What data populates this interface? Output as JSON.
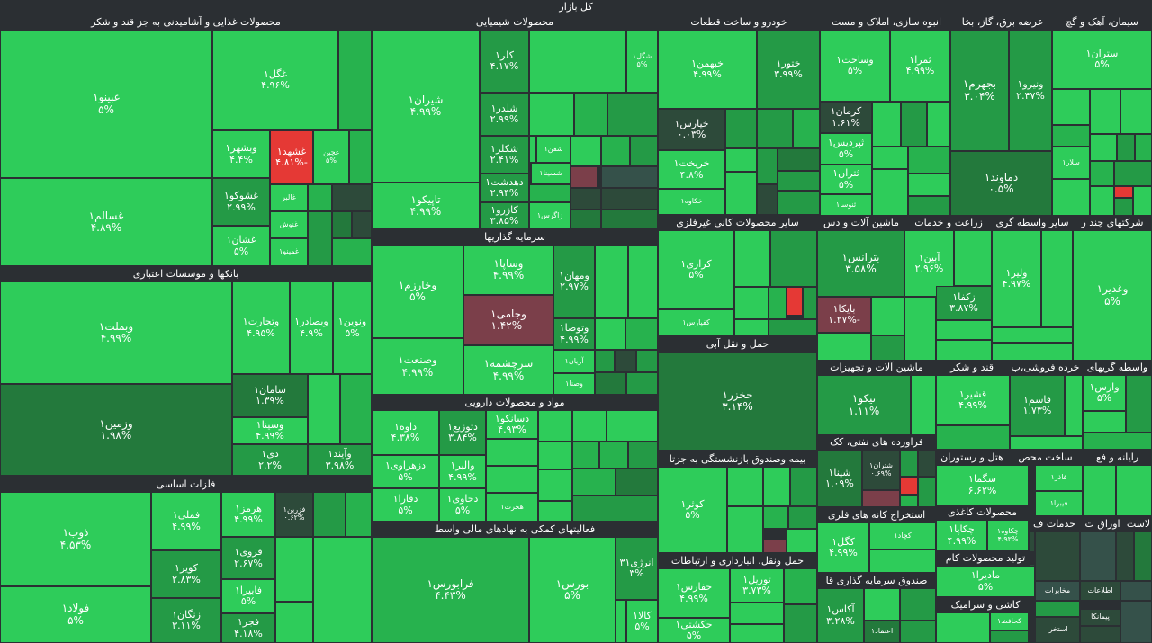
{
  "market_title": "کل بازار",
  "sectors": {
    "food": "محصولات غذایی و آشامیدنی به جز قند و شکر",
    "chemical": "محصولات شیمیایی",
    "auto": "خودرو و ساخت قطعات",
    "construction": "انبوه سازی، املاک و مست",
    "power": "عرضه برق، گاز، بخا",
    "cement": "سیمان، آهک و گچ",
    "banks": "بانکها و موسسات اعتباری",
    "investment": "سرمایه گذاریها",
    "nonmetal": "سایر محصولات کانی غیرفلزی",
    "machinery": "ماشین آلات و دس",
    "agri": "زراعت و خدمات",
    "multi": "شرکتهای چند ر",
    "other_retail": "سایر واسطه گری",
    "transport": "حمل و نقل آبی",
    "basic_metals": "فلزات اساسی",
    "pharma": "مواد و محصولات دارویی",
    "machine_equip": "ماشین آلات و تجهیزات",
    "sugar": "قند و شکر",
    "retail": "خرده فروشی،ب",
    "intermediaries": "واسطه گریهای",
    "oil": "فراورده های نفتی، کک",
    "pension": "بیمه وصندوق بازنشستگی به جزتا",
    "hotel": "هتل و رستوران",
    "computer": "رایانه و فع",
    "manufacturing": "ساخت محص",
    "financial": "فعالیتهای کمکی به نهادهای مالی واسط",
    "mining": "استخراج کانه های فلزی",
    "paper": "محصولات کاغذی",
    "transport2": "حمل ونقل، انبارداری و ارتباطات",
    "other_mining": "تولید محصولات کام",
    "services": "خدمات ف",
    "papers": "اوراق ت",
    "assets": "لاست",
    "fund": "صندوق سرمایه گذاری قا",
    "tile": "کاشی و سرامیک"
  },
  "cells": {
    "ghgol": [
      "غگل۱",
      "۴.۹۶%"
    ],
    "ghbino": [
      "غبینو۱",
      "۵%"
    ],
    "veshahr": [
      "وبشهر۱",
      "۴.۴%"
    ],
    "ghshahd": [
      "غشهد۱",
      "-۴.۸۱%"
    ],
    "ghchin": [
      "غچین",
      "۵%"
    ],
    "ghshoko": [
      "غشوکو۱",
      "۲.۹۹%"
    ],
    "ghsalem": [
      "غسالم۱",
      "۴.۸۹%"
    ],
    "ghshan": [
      "غشان۱",
      "۵%"
    ],
    "ghalbor": [
      "غالبر",
      ""
    ],
    "ghnosh": [
      "غنوش",
      ""
    ],
    "ghmino": [
      "غمینو۱",
      ""
    ],
    "shiran": [
      "شیران۱",
      "۴.۹۹%"
    ],
    "klr": [
      "کلر۱",
      "۴.۱۷%"
    ],
    "shkl": [
      "شگل۱",
      "۵%"
    ],
    "shldr": [
      "شلدر۱",
      "۲.۹۹%"
    ],
    "shklr": [
      "شکلر۱",
      "۲.۴۱%"
    ],
    "shfn": [
      "شفن۱",
      ""
    ],
    "tapico": [
      "تاپیکو۱",
      "۴.۹۹%"
    ],
    "dahdasht": [
      "دهدشت۱",
      "۲.۹۴%"
    ],
    "shsina": [
      "شسینا۱",
      ""
    ],
    "kazro": [
      "کازرو۱",
      "۳.۸۵%"
    ],
    "zagros": [
      "زاگرس۱",
      ""
    ],
    "khemhn": [
      "خبهمن۱",
      "۴.۹۹%"
    ],
    "khator": [
      "ختور۱",
      "۳.۹۹%"
    ],
    "khpars": [
      "خپارس۱",
      "۰.۰۳%"
    ],
    "khrikht": [
      "خریخت۱",
      "۴.۸%"
    ],
    "khakhao": [
      "خکاوه۱",
      ""
    ],
    "vsakht": [
      "وساخت۱",
      "۵%"
    ],
    "thamra": [
      "ثمرا۱",
      "۴.۹۹%"
    ],
    "kerman": [
      "کرمان۱",
      "۱.۶۱%"
    ],
    "thpardis": [
      "ثپردیس۱",
      "۵%"
    ],
    "thtran": [
      "ثتران۱",
      "۵%"
    ],
    "thnosa": [
      "ثنوسا۱",
      ""
    ],
    "bjahrm": [
      "بجهرم۱",
      "۳.۰۴%"
    ],
    "vnirou": [
      "ونیرو۱",
      "۲.۴۷%"
    ],
    "damavand": [
      "دماوند۱",
      "۰.۵%"
    ],
    "strand": [
      "ستران۱",
      "۵%"
    ],
    "sola": [
      "سلار۱",
      ""
    ],
    "vbmelt": [
      "وبملت۱",
      "۴.۹۹%"
    ],
    "vtejarat": [
      "وتجارت۱",
      "۴.۹۵%"
    ],
    "vsadr": [
      "وبصادر۱",
      "۴.۹%"
    ],
    "vnovin": [
      "ونوین۱",
      "۵%"
    ],
    "saman": [
      "سامان۱",
      "۱.۳۹%"
    ],
    "vzmin": [
      "وزمین۱",
      "۱.۹۸%"
    ],
    "vsina": [
      "وسینا۱",
      "۴.۹۹%"
    ],
    "dey": [
      "دی۱",
      "۲.۲%"
    ],
    "vaind": [
      "وآیند۱",
      "۳.۹۸%"
    ],
    "vkharazm": [
      "وخارزم۱",
      "۵%"
    ],
    "vsapa": [
      "وساپا۱",
      "۴.۹۹%"
    ],
    "vmehan": [
      "ومهان۱",
      "۲.۹۷%"
    ],
    "vjami": [
      "وجامی۱",
      "-۱.۴۲%"
    ],
    "vsanat": [
      "وصنعت۱",
      "۴.۹۹%"
    ],
    "srcheshmeh": [
      "سرچشمه۱",
      "۴.۹۹%"
    ],
    "vtosa": [
      "وتوصا۱",
      "۴.۹۹%"
    ],
    "arian": [
      "آریان۱",
      ""
    ],
    "vsna": [
      "وصنا۱",
      ""
    ],
    "zob": [
      "ذوب۱",
      "۴.۵۳%"
    ],
    "fmli": [
      "فملی۱",
      "۴.۹۹%"
    ],
    "hormoz": [
      "هرمز۱",
      "۴.۹۹%"
    ],
    "fazarin": [
      "فزرین۱",
      "۰.۶۲%"
    ],
    "kavir": [
      "کویر۱",
      "۲.۸۳%"
    ],
    "faravi": [
      "فروی۱",
      "۲.۶۷%"
    ],
    "foulad": [
      "فولاد۱",
      "۵%"
    ],
    "zangan": [
      "زنگان۱",
      "۳.۱۱%"
    ],
    "fabira": [
      "فابیرا۱",
      "۵%"
    ],
    "fajr": [
      "فجر۱",
      "۴.۱۸%"
    ],
    "dava": [
      "داوه۱",
      "۴.۳۸%"
    ],
    "dtozi": [
      "دتوزیع۱",
      "۳.۸۴%"
    ],
    "dsaco": [
      "دسانکو۱",
      "۴.۹۳%"
    ],
    "dzahrawi": [
      "دزهراوی۱",
      "۵%"
    ],
    "valbor": [
      "والبر۱",
      "۴.۹۹%"
    ],
    "dafra": [
      "دفارا۱",
      "۵%"
    ],
    "dhavi": [
      "دحاوی۱",
      "۵%"
    ],
    "hjrt": [
      "هجرت۱",
      ""
    ],
    "farabourse": [
      "فرابورس۱",
      "۴.۴۳%"
    ],
    "bourse": [
      "بورس۱",
      "۵%"
    ],
    "anrji": [
      "انرژی۳۱",
      "۳%"
    ],
    "kala": [
      "کالا۱",
      "۵%"
    ],
    "kerazi": [
      "کرازی۱",
      "۵%"
    ],
    "kefpars": [
      "کفپارس۱",
      ""
    ],
    "hkzar": [
      "حخزر۱",
      "۳.۱۴%"
    ],
    "botranas": [
      "بترانس۱",
      "۳.۵۸%"
    ],
    "bayka": [
      "بایکا۱",
      "-۱.۲۷%"
    ],
    "abin": [
      "آبین۱",
      "۲.۹۶%"
    ],
    "zkopa": [
      "زکفا۱",
      "۳.۸۷%"
    ],
    "vlifz": [
      "ولیز۱",
      "۴.۹۷%"
    ],
    "vghadir": [
      "وغدیر۱",
      "۵%"
    ],
    "tekno": [
      "تیکو۱",
      "۱.۱۱%"
    ],
    "ghshir": [
      "قشیر۱",
      "۴.۹۹%"
    ],
    "ghasem": [
      "قاسم۱",
      "۱.۷۳%"
    ],
    "vars": [
      "وارس۱",
      "۵%"
    ],
    "shpna": [
      "شپنا۱",
      "۱.۰۹%"
    ],
    "shtran": [
      "شتران۱",
      "۰.۶۹%"
    ],
    "kothar": [
      "کوثر۱",
      "۵%"
    ],
    "sgma": [
      "سگما۱",
      "۶.۶۲%"
    ],
    "fazra": [
      "فاذر۱",
      ""
    ],
    "fibra": [
      "فیبرا۱",
      ""
    ],
    "kgol": [
      "کگل۱",
      "۴.۹۹%"
    ],
    "kchad": [
      "کچاد۱",
      ""
    ],
    "chkapa": [
      "چکاپا۱",
      "۴.۹۹%"
    ],
    "chkavah": [
      "چکاوه۱",
      "۴.۹۳%"
    ],
    "hfars": [
      "حفارس۱",
      "۴.۹۹%"
    ],
    "tvril": [
      "توریل۱",
      "۳.۷۳%"
    ],
    "madira": [
      "مادیرا۱",
      "۵%"
    ],
    "aks": [
      "آکاس۱",
      "۳.۲۸%"
    ],
    "hkshti": [
      "حکشتی۱",
      "۵%"
    ]
  },
  "misc_labels": {
    "estekhra": "استخرا",
    "peymana": "پیمانکا",
    "etelaat": "اطلاعات",
    "mokhaberat": "مخابرات",
    "kafa": "کحافظ۱",
    "etemad": "اعتماد۱"
  }
}
